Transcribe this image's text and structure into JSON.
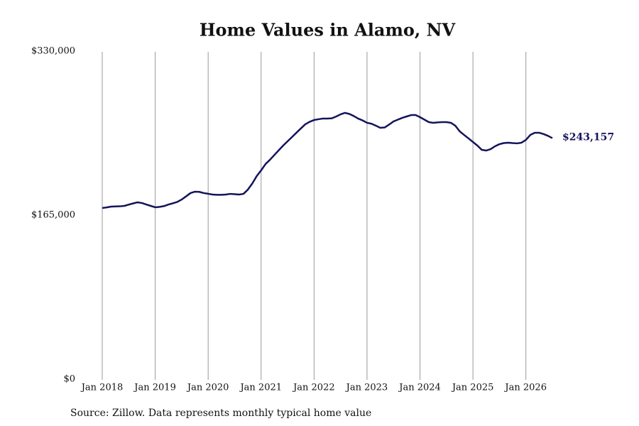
{
  "chart_data": {
    "type": "line",
    "title": "Home Values in Alamo, NV",
    "source": "Source: Zillow. Data represents monthly typical home value",
    "x": [
      "2018-01",
      "2018-02",
      "2018-03",
      "2018-04",
      "2018-05",
      "2018-06",
      "2018-07",
      "2018-08",
      "2018-09",
      "2018-10",
      "2018-11",
      "2018-12",
      "2019-01",
      "2019-02",
      "2019-03",
      "2019-04",
      "2019-05",
      "2019-06",
      "2019-07",
      "2019-08",
      "2019-09",
      "2019-10",
      "2019-11",
      "2019-12",
      "2020-01",
      "2020-02",
      "2020-03",
      "2020-04",
      "2020-05",
      "2020-06",
      "2020-07",
      "2020-08",
      "2020-09",
      "2020-10",
      "2020-11",
      "2020-12",
      "2021-01",
      "2021-02",
      "2021-03",
      "2021-04",
      "2021-05",
      "2021-06",
      "2021-07",
      "2021-08",
      "2021-09",
      "2021-10",
      "2021-11",
      "2021-12",
      "2022-01",
      "2022-02",
      "2022-03",
      "2022-04",
      "2022-05",
      "2022-06",
      "2022-07",
      "2022-08",
      "2022-09",
      "2022-10",
      "2022-11",
      "2022-12",
      "2023-01",
      "2023-02",
      "2023-03",
      "2023-04",
      "2023-05",
      "2023-06",
      "2023-07",
      "2023-08",
      "2023-09",
      "2023-10",
      "2023-11",
      "2023-12",
      "2024-01",
      "2024-02",
      "2024-03",
      "2024-04",
      "2024-05",
      "2024-06",
      "2024-07",
      "2024-08",
      "2024-09",
      "2024-10",
      "2024-11",
      "2024-12",
      "2025-01",
      "2025-02",
      "2025-03",
      "2025-04",
      "2025-05",
      "2025-06",
      "2025-07",
      "2025-08",
      "2025-09",
      "2025-10",
      "2025-11",
      "2025-12",
      "2026-01",
      "2026-02",
      "2026-03",
      "2026-04",
      "2026-05",
      "2026-06",
      "2026-07"
    ],
    "series": [
      {
        "name": "Home value",
        "color": "#14145a",
        "values": [
          172900,
          173500,
          174300,
          174500,
          174600,
          175000,
          176300,
          177500,
          178600,
          177900,
          176400,
          175000,
          173600,
          174000,
          174800,
          176400,
          177600,
          179000,
          181400,
          184600,
          187900,
          189300,
          189100,
          187900,
          187200,
          186400,
          186200,
          186200,
          186400,
          187100,
          186800,
          186400,
          187100,
          191400,
          197500,
          205000,
          210700,
          217100,
          221400,
          226200,
          231000,
          235700,
          240000,
          244300,
          248600,
          252900,
          257100,
          259600,
          261400,
          262200,
          262900,
          262900,
          263100,
          264900,
          267100,
          268600,
          267500,
          265400,
          262800,
          261000,
          258600,
          257700,
          255700,
          253600,
          253900,
          256800,
          260000,
          261800,
          263600,
          265000,
          266400,
          266400,
          264300,
          261800,
          259300,
          258600,
          259000,
          259300,
          259300,
          258600,
          255700,
          250000,
          246400,
          242900,
          239300,
          235700,
          231400,
          230700,
          232100,
          235000,
          237100,
          238200,
          238600,
          238200,
          237900,
          238600,
          241400,
          246400,
          248600,
          248600,
          247300,
          245500,
          243157
        ],
        "value_labels": {
          "102": "$243,157"
        }
      }
    ],
    "xlim": [
      "2018-01",
      "2026-07"
    ],
    "xticks": [
      {
        "value": "2018-01",
        "label": "Jan 2018"
      },
      {
        "value": "2019-01",
        "label": "Jan 2019"
      },
      {
        "value": "2020-01",
        "label": "Jan 2020"
      },
      {
        "value": "2021-01",
        "label": "Jan 2021"
      },
      {
        "value": "2022-01",
        "label": "Jan 2022"
      },
      {
        "value": "2023-01",
        "label": "Jan 2023"
      },
      {
        "value": "2024-01",
        "label": "Jan 2024"
      },
      {
        "value": "2025-01",
        "label": "Jan 2025"
      },
      {
        "value": "2026-01",
        "label": "Jan 2026"
      }
    ],
    "ylim": [
      0,
      330000
    ],
    "yticks": [
      {
        "value": 0,
        "label": "$0"
      },
      {
        "value": 165000,
        "label": "$165,000"
      },
      {
        "value": 330000,
        "label": "$330,000"
      }
    ],
    "grid": "x"
  }
}
